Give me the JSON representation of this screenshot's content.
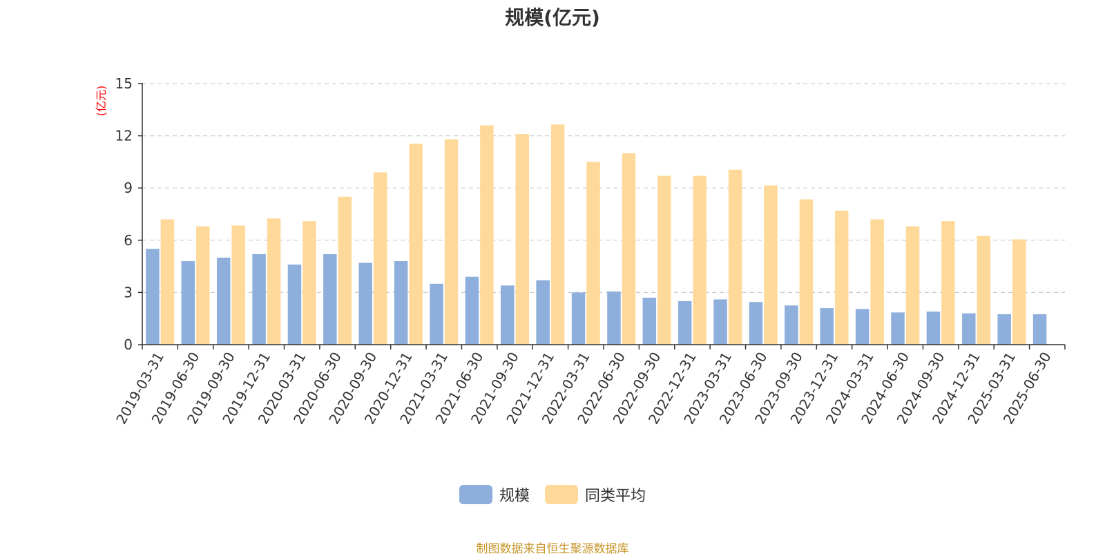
{
  "chart_data": {
    "type": "bar",
    "title": "规模(亿元)",
    "ylabel": "(亿元)",
    "xlabel": "",
    "ylim": [
      0,
      15
    ],
    "yticks": [
      "0",
      "3",
      "6",
      "9",
      "12",
      "15"
    ],
    "grid": true,
    "legend_position": "bottom-center",
    "categories": [
      "2019-03-31",
      "2019-06-30",
      "2019-09-30",
      "2019-12-31",
      "2020-03-31",
      "2020-06-30",
      "2020-09-30",
      "2020-12-31",
      "2021-03-31",
      "2021-06-30",
      "2021-09-30",
      "2021-12-31",
      "2022-03-31",
      "2022-06-30",
      "2022-09-30",
      "2022-12-31",
      "2023-03-31",
      "2023-06-30",
      "2023-09-30",
      "2023-12-31",
      "2024-03-31",
      "2024-06-30",
      "2024-09-30",
      "2024-12-31",
      "2025-03-31",
      "2025-06-30"
    ],
    "series": [
      {
        "name": "规模",
        "color": "#8eafdc",
        "values": [
          5.5,
          4.8,
          5.0,
          5.2,
          4.6,
          5.2,
          4.7,
          4.8,
          3.5,
          3.9,
          3.4,
          3.7,
          3.0,
          3.05,
          2.7,
          2.5,
          2.6,
          2.45,
          2.25,
          2.1,
          2.05,
          1.85,
          1.9,
          1.8,
          1.75,
          1.75
        ]
      },
      {
        "name": "同类平均",
        "color": "#ffd99a",
        "values": [
          7.2,
          6.8,
          6.85,
          7.25,
          7.1,
          8.5,
          9.9,
          11.55,
          11.8,
          12.6,
          12.1,
          12.65,
          10.5,
          11.0,
          9.7,
          9.7,
          10.05,
          9.15,
          8.35,
          7.7,
          7.2,
          6.8,
          7.1,
          6.25,
          6.05,
          null
        ]
      }
    ]
  },
  "source_note": "制图数据来自恒生聚源数据库",
  "colors": {
    "axis": "#333333",
    "grid": "#cccccc",
    "unit_label": "#ff0000",
    "source_note": "#c8962a"
  }
}
